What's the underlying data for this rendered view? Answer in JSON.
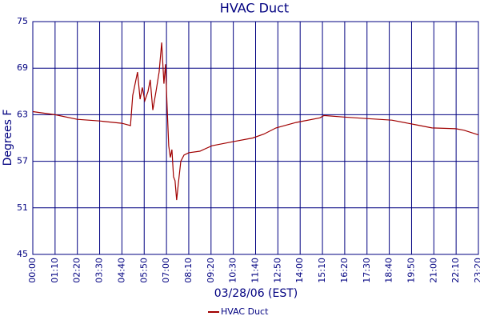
{
  "chart_data": {
    "type": "line",
    "title": "HVAC Duct",
    "xlabel": "03/28/06 (EST)",
    "ylabel": "Degrees F",
    "x": [
      0,
      70,
      140,
      210,
      280,
      307,
      314,
      329,
      337,
      344,
      352,
      362,
      369,
      377,
      387,
      397,
      405,
      412,
      417,
      422,
      427,
      432,
      437,
      442,
      447,
      452,
      457,
      465,
      475,
      490,
      525,
      563,
      626,
      691,
      726,
      764,
      827,
      902,
      915,
      978,
      1053,
      1128,
      1204,
      1254,
      1329,
      1355,
      1400
    ],
    "series": [
      {
        "name": "HVAC Duct",
        "color": "#a00000",
        "values": [
          63.4,
          63.0,
          62.4,
          62.2,
          61.9,
          61.6,
          65.5,
          68.5,
          65.0,
          66.5,
          64.8,
          66.0,
          67.5,
          63.6,
          66.0,
          68.5,
          72.3,
          67.0,
          69.5,
          64.0,
          59.0,
          57.5,
          58.5,
          55.0,
          54.5,
          52.0,
          54.0,
          57.0,
          57.8,
          58.1,
          58.3,
          59.0,
          59.5,
          60.0,
          60.5,
          61.3,
          62.0,
          62.6,
          62.9,
          62.7,
          62.5,
          62.3,
          61.7,
          61.3,
          61.2,
          61.0,
          60.4
        ]
      }
    ],
    "xlim": [
      0,
      1400
    ],
    "xticks": [
      {
        "value": 0,
        "label": "00:00"
      },
      {
        "value": 70,
        "label": "01:10"
      },
      {
        "value": 140,
        "label": "02:20"
      },
      {
        "value": 210,
        "label": "03:30"
      },
      {
        "value": 280,
        "label": "04:40"
      },
      {
        "value": 350,
        "label": "05:50"
      },
      {
        "value": 420,
        "label": "07:00"
      },
      {
        "value": 490,
        "label": "08:10"
      },
      {
        "value": 560,
        "label": "09:20"
      },
      {
        "value": 630,
        "label": "10:30"
      },
      {
        "value": 700,
        "label": "11:40"
      },
      {
        "value": 770,
        "label": "12:50"
      },
      {
        "value": 840,
        "label": "14:00"
      },
      {
        "value": 910,
        "label": "15:10"
      },
      {
        "value": 980,
        "label": "16:20"
      },
      {
        "value": 1050,
        "label": "17:30"
      },
      {
        "value": 1120,
        "label": "18:40"
      },
      {
        "value": 1190,
        "label": "19:50"
      },
      {
        "value": 1260,
        "label": "21:00"
      },
      {
        "value": 1330,
        "label": "22:10"
      },
      {
        "value": 1400,
        "label": "23:20"
      }
    ],
    "ylim": [
      45,
      75
    ],
    "yticks": [
      45,
      51,
      57,
      63,
      69,
      75
    ],
    "grid": true,
    "grid_color": "#000080",
    "legend": "bottom"
  }
}
